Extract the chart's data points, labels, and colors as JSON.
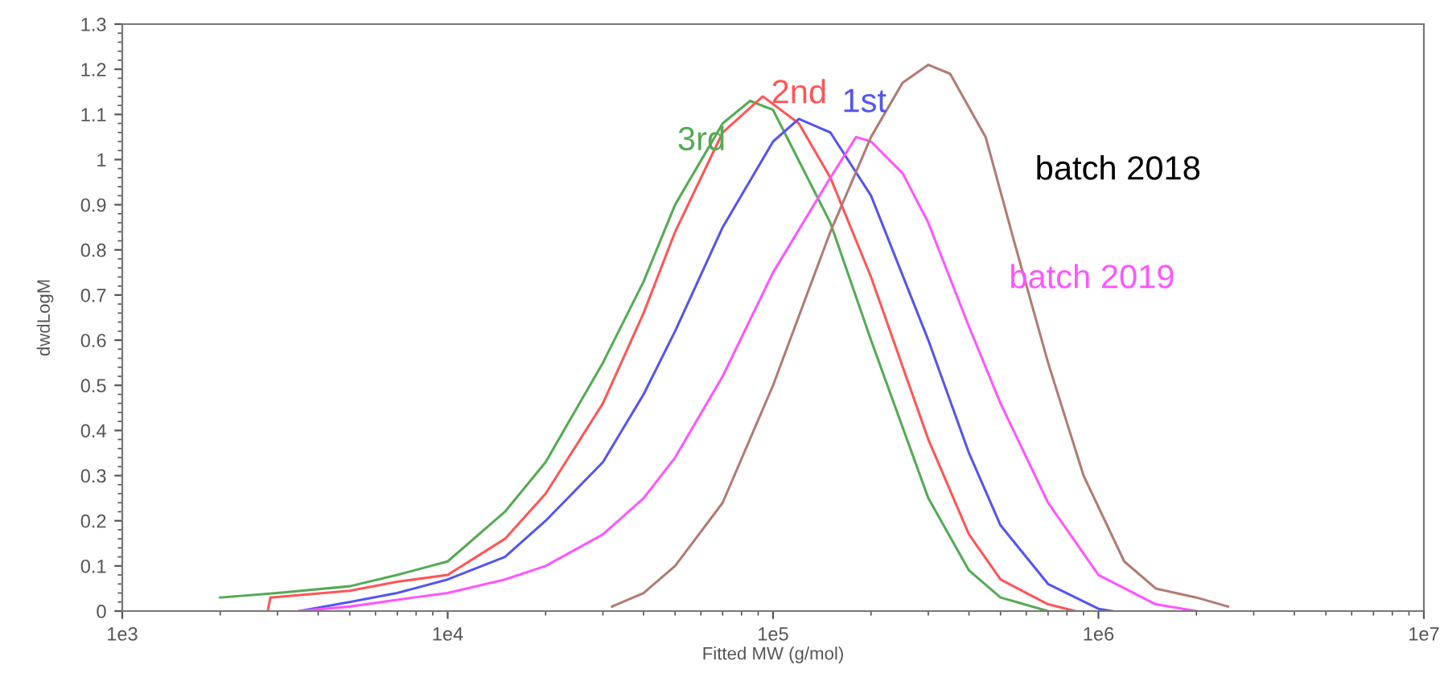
{
  "chart_data": {
    "type": "line",
    "xlabel": "Fitted MW (g/mol)",
    "ylabel": "dwdLogM",
    "log": "x",
    "xlim": [
      1000,
      10000000
    ],
    "xticks": [
      {
        "value": 1000,
        "label": "1e3"
      },
      {
        "value": 10000,
        "label": "1e4"
      },
      {
        "value": 100000,
        "label": "1e5"
      },
      {
        "value": 1000000,
        "label": "1e6"
      },
      {
        "value": 10000000,
        "label": "1e7"
      }
    ],
    "ylim": [
      0,
      1.3
    ],
    "yticks": [
      0,
      0.1,
      0.2,
      0.3,
      0.4,
      0.5,
      0.6,
      0.7,
      0.8,
      0.9,
      1,
      1.1,
      1.2,
      1.3
    ],
    "grid": false,
    "legend": false,
    "marker": "none",
    "line_style": "solid",
    "series": [
      {
        "name": "3rd",
        "color": "#55aa55",
        "x": [
          2000,
          3000,
          5000,
          7000,
          10000,
          15000,
          20000,
          30000,
          40000,
          50000,
          70000,
          85000,
          100000,
          150000,
          200000,
          300000,
          400000,
          500000,
          700000
        ],
        "values": [
          0.03,
          0.04,
          0.055,
          0.08,
          0.11,
          0.22,
          0.33,
          0.55,
          0.73,
          0.9,
          1.08,
          1.13,
          1.11,
          0.86,
          0.6,
          0.25,
          0.09,
          0.03,
          0.0
        ]
      },
      {
        "name": "2nd",
        "color": "#ff5555",
        "x": [
          2800,
          2850,
          5000,
          7000,
          10000,
          15000,
          20000,
          30000,
          40000,
          50000,
          70000,
          93000,
          120000,
          150000,
          200000,
          300000,
          400000,
          500000,
          700000,
          850000
        ],
        "values": [
          0.0,
          0.03,
          0.045,
          0.065,
          0.08,
          0.16,
          0.26,
          0.46,
          0.66,
          0.84,
          1.06,
          1.14,
          1.08,
          0.96,
          0.74,
          0.38,
          0.17,
          0.07,
          0.015,
          0.0
        ]
      },
      {
        "name": "1st",
        "color": "#5555ee",
        "x": [
          3500,
          5000,
          7000,
          10000,
          15000,
          20000,
          30000,
          40000,
          50000,
          70000,
          100000,
          120000,
          150000,
          200000,
          300000,
          400000,
          500000,
          700000,
          1000000,
          1100000
        ],
        "values": [
          0.0,
          0.02,
          0.04,
          0.07,
          0.12,
          0.2,
          0.33,
          0.48,
          0.62,
          0.85,
          1.04,
          1.09,
          1.06,
          0.92,
          0.6,
          0.35,
          0.19,
          0.06,
          0.005,
          0.0
        ]
      },
      {
        "name": "batch 2019",
        "color": "#ff55ff",
        "x": [
          3500,
          5000,
          7000,
          10000,
          15000,
          20000,
          30000,
          40000,
          50000,
          70000,
          100000,
          150000,
          180000,
          200000,
          250000,
          300000,
          400000,
          500000,
          700000,
          1000000,
          1500000,
          2000000
        ],
        "values": [
          0.0,
          0.01,
          0.025,
          0.04,
          0.07,
          0.1,
          0.17,
          0.25,
          0.34,
          0.52,
          0.75,
          0.96,
          1.05,
          1.04,
          0.97,
          0.86,
          0.63,
          0.46,
          0.24,
          0.08,
          0.015,
          0.0
        ]
      },
      {
        "name": "batch 2018",
        "color": "#b07c74",
        "x": [
          32000,
          40000,
          50000,
          70000,
          100000,
          150000,
          200000,
          250000,
          300000,
          350000,
          450000,
          550000,
          700000,
          900000,
          1200000,
          1500000,
          2000000,
          2500000
        ],
        "values": [
          0.01,
          0.04,
          0.1,
          0.24,
          0.5,
          0.84,
          1.05,
          1.17,
          1.21,
          1.19,
          1.05,
          0.82,
          0.55,
          0.3,
          0.11,
          0.05,
          0.03,
          0.01
        ]
      }
    ]
  }
}
